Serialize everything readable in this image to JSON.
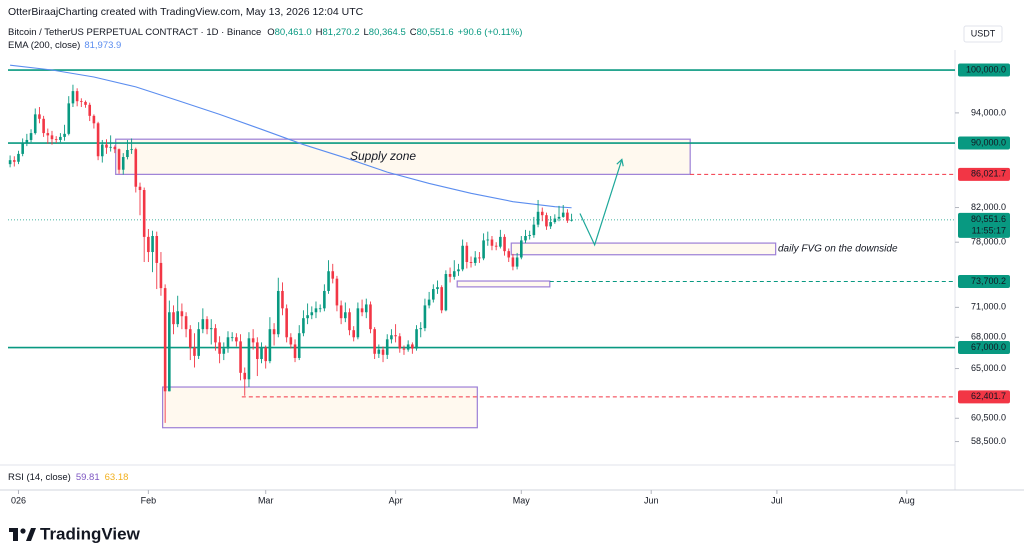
{
  "chart_data": {
    "type": "candlestick",
    "attribution": "OtterBiraajCharting created with TradingView.com, May 13, 2026 12:04 UTC",
    "symbol": "Bitcoin / TetherUS PERPETUAL CONTRACT · 1D · Binance",
    "ohlc_legend": [
      {
        "key": "O",
        "text": "80,461.0"
      },
      {
        "key": "H",
        "text": "81,270.2"
      },
      {
        "key": "L",
        "text": "80,364.5"
      },
      {
        "key": "C",
        "text": "80,551.6"
      }
    ],
    "change": "+90.6 (+0.11%)",
    "currency": "USDT",
    "up_color": "#089981",
    "down_color": "#f23645",
    "log_scale": true,
    "ylim": [
      56800,
      102930
    ],
    "xlim": [
      -0.5,
      225.5
    ],
    "xticks": [
      {
        "value": 2,
        "label": "026"
      },
      {
        "value": 33,
        "label": "Feb"
      },
      {
        "value": 61,
        "label": "Mar"
      },
      {
        "value": 92,
        "label": "Apr"
      },
      {
        "value": 122,
        "label": "May"
      },
      {
        "value": 153,
        "label": "Jun"
      },
      {
        "value": 183,
        "label": "Jul"
      },
      {
        "value": 214,
        "label": "Aug"
      }
    ],
    "yticks": [
      {
        "value": 94000,
        "label": "94,000.0"
      },
      {
        "value": 82000,
        "label": "82,000.0"
      },
      {
        "value": 78000,
        "label": "78,000.0"
      },
      {
        "value": 71000,
        "label": "71,000.0"
      },
      {
        "value": 68000,
        "label": "68,000.0"
      },
      {
        "value": 65000,
        "label": "65,000.0"
      },
      {
        "value": 60500,
        "label": "60,500.0"
      },
      {
        "value": 58500,
        "label": "58,500.0"
      }
    ],
    "open": [
      87300,
      87800,
      87600,
      88600,
      90000,
      90400,
      91300,
      93800,
      93200,
      91300,
      91000,
      90500,
      90400,
      90800,
      91200,
      95300,
      97000,
      95600,
      95500,
      95100,
      93600,
      92600,
      88300,
      89800,
      89400,
      89500,
      89200,
      86600,
      88200,
      89100,
      89200,
      84500,
      84100,
      78600,
      76900,
      78700,
      75700,
      73000,
      62900,
      70500,
      69300,
      70600,
      70100,
      68800,
      67000,
      66200,
      68800,
      69800,
      68800,
      68900,
      67500,
      66400,
      66900,
      68000,
      68000,
      67600,
      64600,
      64000,
      67900,
      67500,
      65900,
      67000,
      65700,
      68800,
      68300,
      72700,
      70900,
      68000,
      67300,
      66000,
      68400,
      69900,
      70200,
      70500,
      70900,
      70900,
      72700,
      74800,
      74000,
      71200,
      69900,
      70500,
      68700,
      68000,
      70900,
      70500,
      71300,
      68800,
      66400,
      66800,
      66300,
      67800,
      68200,
      68100,
      66900,
      66800,
      67300,
      66900,
      68800,
      68900,
      71200,
      71800,
      72900,
      73100,
      70700,
      74500,
      74200,
      74800,
      75000,
      77600,
      75800,
      75700,
      76300,
      76200,
      78200,
      78300,
      77600,
      77500,
      78600,
      77000,
      76300,
      75300,
      76300,
      78200,
      78700,
      78800,
      80000,
      81500,
      81100,
      79800,
      80300,
      80700,
      80900,
      81400,
      80461
    ],
    "high": [
      88400,
      88300,
      89000,
      90600,
      91200,
      91800,
      94600,
      94800,
      93600,
      91900,
      91600,
      90900,
      91300,
      92400,
      96300,
      97900,
      97400,
      96000,
      95700,
      95400,
      93800,
      92800,
      90400,
      90500,
      91000,
      89700,
      89300,
      88700,
      90400,
      90600,
      89400,
      85000,
      84400,
      79500,
      79300,
      79200,
      76900,
      73400,
      71700,
      71200,
      72200,
      71400,
      70500,
      69200,
      68400,
      69500,
      70900,
      70100,
      69800,
      69300,
      68100,
      67500,
      68600,
      68500,
      68400,
      68300,
      65100,
      68500,
      68800,
      68000,
      67500,
      67200,
      70000,
      69400,
      74100,
      73600,
      71300,
      68400,
      67800,
      69200,
      70700,
      71400,
      71100,
      71600,
      71300,
      73400,
      76000,
      75600,
      74300,
      71700,
      71500,
      70900,
      69100,
      71500,
      71800,
      71900,
      71600,
      69000,
      67300,
      67100,
      68300,
      68800,
      69300,
      68400,
      67200,
      67700,
      67500,
      69200,
      69500,
      71900,
      72600,
      73400,
      73800,
      73300,
      74900,
      75200,
      76000,
      75600,
      78300,
      78000,
      76400,
      77000,
      76900,
      79000,
      79200,
      78700,
      78000,
      79400,
      78900,
      77300,
      76700,
      76800,
      78700,
      79400,
      79300,
      80900,
      82900,
      82000,
      81400,
      81000,
      81200,
      82200,
      82300,
      81800,
      81270.2
    ],
    "low": [
      86900,
      87000,
      87300,
      88300,
      89600,
      90100,
      91100,
      92600,
      90800,
      89900,
      89800,
      90000,
      90100,
      90300,
      91000,
      94800,
      94900,
      94800,
      94700,
      92900,
      91900,
      87800,
      87500,
      88600,
      88900,
      88700,
      86100,
      86000,
      87900,
      88600,
      83800,
      81100,
      75800,
      75800,
      74700,
      72900,
      72200,
      60100,
      62900,
      68300,
      69000,
      68800,
      68000,
      65800,
      65100,
      65900,
      68400,
      68300,
      67300,
      66700,
      65500,
      65800,
      66500,
      67600,
      67100,
      63900,
      62500,
      63300,
      66800,
      64300,
      65500,
      65000,
      65500,
      67200,
      68000,
      70200,
      67500,
      66900,
      65600,
      65800,
      68100,
      69300,
      69800,
      69900,
      70500,
      70600,
      72400,
      73500,
      70600,
      69300,
      69500,
      68200,
      67600,
      67800,
      70100,
      69900,
      68400,
      65900,
      66000,
      65600,
      65900,
      67400,
      67500,
      66500,
      66300,
      66600,
      66400,
      66700,
      68000,
      68600,
      70900,
      71500,
      72400,
      70400,
      70600,
      73600,
      73900,
      74300,
      74800,
      75100,
      75200,
      75400,
      75700,
      76000,
      77600,
      77100,
      77100,
      77300,
      76500,
      75800,
      74900,
      75000,
      76100,
      77900,
      78300,
      78500,
      79700,
      80400,
      79400,
      79500,
      80100,
      80400,
      80800,
      80200,
      80364.5
    ],
    "close": [
      87800,
      87600,
      88600,
      90000,
      90400,
      91300,
      93800,
      93200,
      91300,
      91000,
      90500,
      90400,
      90800,
      91200,
      95300,
      97000,
      95600,
      95500,
      95100,
      93600,
      92600,
      88300,
      89800,
      89400,
      89500,
      89200,
      86600,
      88200,
      89100,
      89200,
      84500,
      84100,
      78600,
      76900,
      78700,
      75700,
      73000,
      62900,
      70500,
      69300,
      70600,
      70100,
      68800,
      67000,
      66200,
      68800,
      69800,
      68800,
      68900,
      67500,
      66400,
      66900,
      68000,
      68000,
      67600,
      64600,
      64000,
      67900,
      67500,
      65900,
      67000,
      65700,
      68800,
      68300,
      72700,
      70900,
      68000,
      67300,
      66000,
      68400,
      69900,
      70200,
      70500,
      70900,
      70900,
      72700,
      74800,
      74000,
      71200,
      69900,
      70500,
      68700,
      68000,
      70900,
      70500,
      71300,
      68800,
      66400,
      66800,
      66300,
      67800,
      68200,
      68100,
      66900,
      66800,
      67300,
      66900,
      68800,
      68900,
      71200,
      71800,
      72900,
      73100,
      70700,
      74500,
      74200,
      74800,
      75000,
      77600,
      75800,
      75700,
      76300,
      76200,
      78200,
      78300,
      77600,
      77500,
      78600,
      77000,
      76300,
      75300,
      76300,
      78200,
      78700,
      78800,
      80000,
      81500,
      81100,
      79800,
      80300,
      80700,
      80900,
      81400,
      80461,
      80551.6
    ],
    "ema": {
      "name": "EMA (200, close)",
      "legend_value": "81,973.9",
      "color": "#5b8def",
      "x": [
        0,
        10,
        20,
        30,
        40,
        50,
        60,
        70,
        80,
        90,
        100,
        110,
        120,
        130,
        134
      ],
      "values": [
        100700,
        100000,
        99000,
        97600,
        95700,
        93800,
        91800,
        89800,
        88100,
        86300,
        84900,
        83700,
        82700,
        82100,
        81973.9
      ]
    },
    "last_price": {
      "value": 80551.6,
      "label": "80,551.6",
      "countdown": "11:55:17",
      "color": "#089981"
    },
    "price_lines": [
      {
        "value": 100000,
        "label": "100,000.0",
        "color": "#089981",
        "style": "solid",
        "x_start": -0.5
      },
      {
        "value": 90000,
        "label": "90,000.0",
        "color": "#089981",
        "style": "solid",
        "x_start": -0.5
      },
      {
        "value": 86021.7,
        "label": "86,021.7",
        "color": "#f23645",
        "style": "dashed",
        "x_start": 162.3
      },
      {
        "value": 73700.2,
        "label": "73,700.2",
        "color": "#089981",
        "style": "dashed",
        "x_start": 128.8
      },
      {
        "value": 67000,
        "label": "67,000.0",
        "color": "#089981",
        "style": "solid",
        "x_start": -0.5
      },
      {
        "value": 62401.7,
        "label": "62,401.7",
        "color": "#f23645",
        "style": "dashed",
        "x_start": 55.3
      }
    ],
    "zones": [
      {
        "x": [
          25.2,
          162.3
        ],
        "y": [
          86021.7,
          90500
        ],
        "label": "Supply zone",
        "label_color": "#e53935"
      },
      {
        "x": [
          119.6,
          182.7
        ],
        "y": [
          76600,
          77900
        ],
        "label": "daily FVG on the downside",
        "label_color": "#2e9d3a"
      },
      {
        "x": [
          106.7,
          128.8
        ],
        "y": [
          73130,
          73750
        ]
      },
      {
        "x": [
          36.4,
          111.5
        ],
        "y": [
          59680,
          63290
        ]
      }
    ],
    "zone_color": "#9c7fd6",
    "projection": {
      "color": "#1ea89a",
      "x": [
        136,
        139.5,
        146
      ],
      "values": [
        81300,
        77700,
        87900
      ]
    },
    "rsi_legend": {
      "name": "RSI (14, close)",
      "values": [
        {
          "text": "59.81",
          "color": "#7e57c2"
        },
        {
          "text": "63.18",
          "color": "#f2b01e"
        }
      ]
    },
    "brand": "TradingView"
  }
}
